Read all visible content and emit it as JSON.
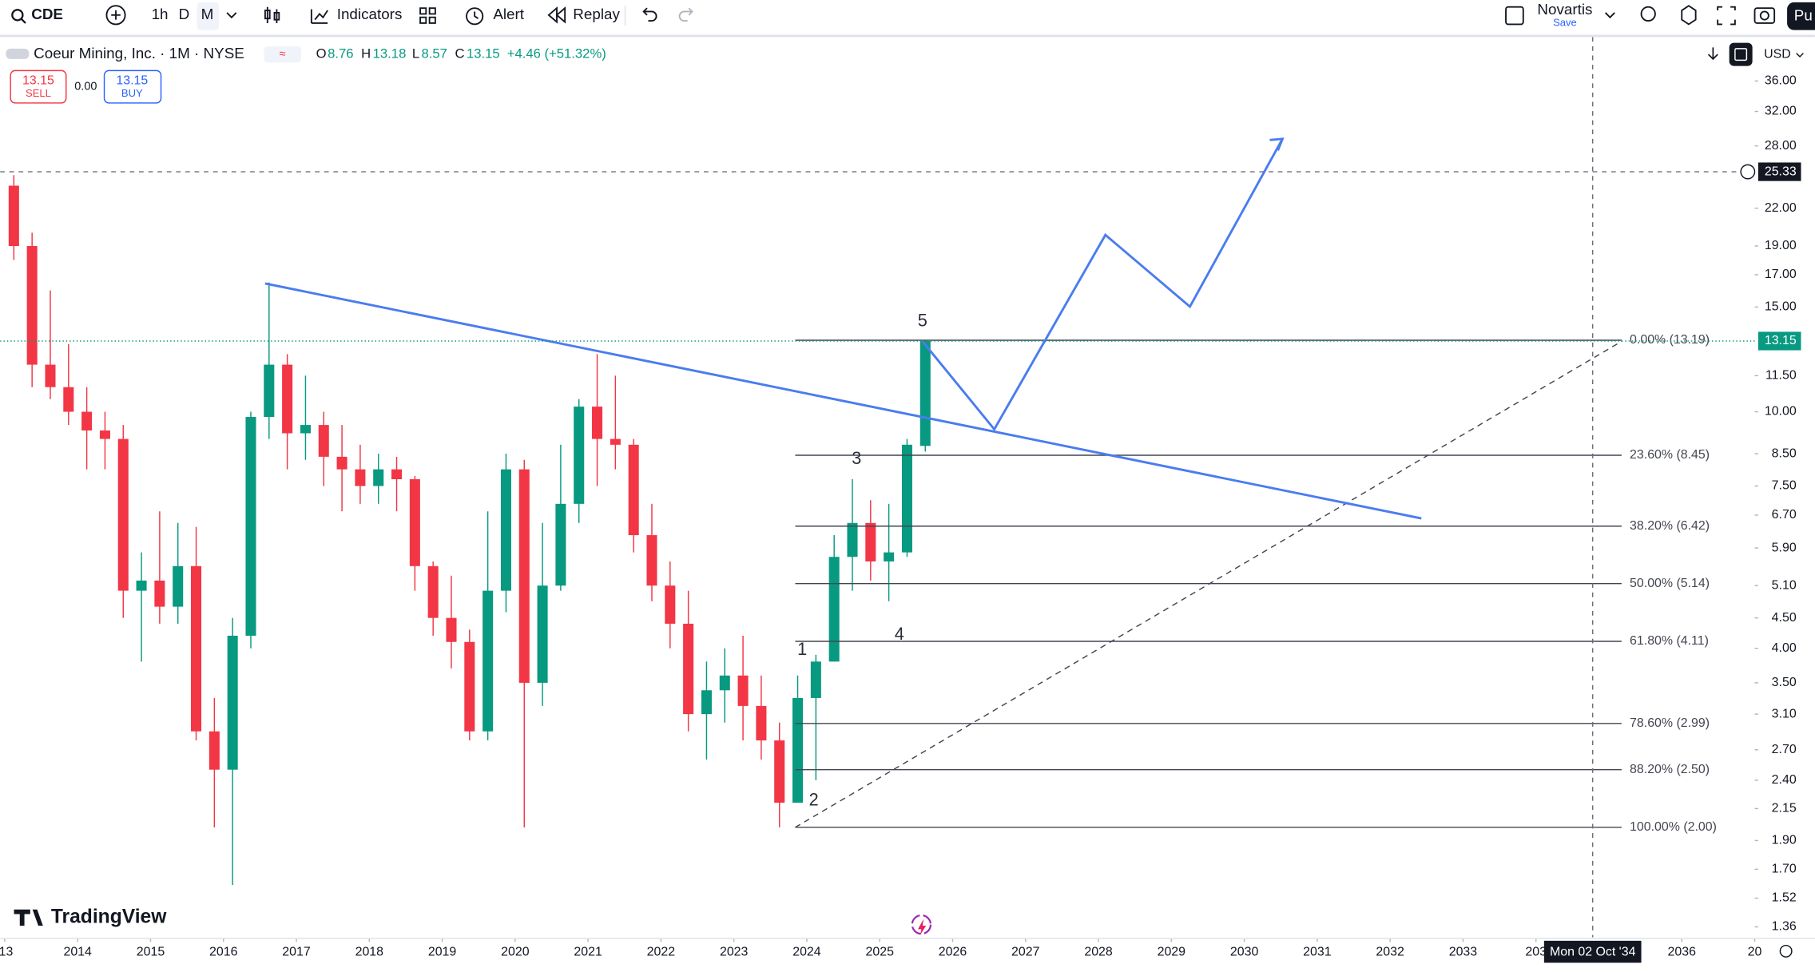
{
  "toolbar": {
    "symbol": "CDE",
    "intervals": [
      "1h",
      "D",
      "M"
    ],
    "indicators": "Indicators",
    "alert": "Alert",
    "replay": "Replay",
    "layout_name": "Novartis",
    "save": "Save",
    "publish": "Pu"
  },
  "legend": {
    "title": "Coeur Mining, Inc. · 1M · NYSE",
    "open_label": "O",
    "open": "8.76",
    "high_label": "H",
    "high": "13.18",
    "low_label": "L",
    "low": "8.57",
    "close_label": "C",
    "close": "13.15",
    "change": "+4.46 (+51.32%)"
  },
  "trade": {
    "sell_price": "13.15",
    "sell": "SELL",
    "spread": "0.00",
    "buy_price": "13.15",
    "buy": "BUY"
  },
  "currency": "USD",
  "price_axis": {
    "ticks": [
      {
        "value": 36,
        "label": "36.00"
      },
      {
        "value": 32,
        "label": "32.00"
      },
      {
        "value": 28,
        "label": "28.00"
      },
      {
        "value": 22,
        "label": "22.00"
      },
      {
        "value": 19,
        "label": "19.00"
      },
      {
        "value": 17,
        "label": "17.00"
      },
      {
        "value": 15,
        "label": "15.00"
      },
      {
        "value": 11.5,
        "label": "11.50"
      },
      {
        "value": 10,
        "label": "10.00"
      },
      {
        "value": 8.5,
        "label": "8.50"
      },
      {
        "value": 7.5,
        "label": "7.50"
      },
      {
        "value": 6.7,
        "label": "6.70"
      },
      {
        "value": 5.9,
        "label": "5.90"
      },
      {
        "value": 5.1,
        "label": "5.10"
      },
      {
        "value": 4.5,
        "label": "4.50"
      },
      {
        "value": 4,
        "label": "4.00"
      },
      {
        "value": 3.5,
        "label": "3.50"
      },
      {
        "value": 3.1,
        "label": "3.10"
      },
      {
        "value": 2.7,
        "label": "2.70"
      },
      {
        "value": 2.4,
        "label": "2.40"
      },
      {
        "value": 2.15,
        "label": "2.15"
      },
      {
        "value": 1.9,
        "label": "1.90"
      },
      {
        "value": 1.7,
        "label": "1.70"
      },
      {
        "value": 1.52,
        "label": "1.52"
      },
      {
        "value": 1.36,
        "label": "1.36"
      }
    ],
    "last_price": 13.15,
    "crosshair": 25.33
  },
  "time_axis": {
    "ticks": [
      {
        "value": 2013,
        "label": "'13"
      },
      2014,
      2015,
      2016,
      2017,
      2018,
      2019,
      2020,
      2021,
      2022,
      2023,
      2024,
      2025,
      2026,
      2027,
      2028,
      2029,
      2030,
      2031,
      2032,
      2033,
      {
        "value": 2034,
        "label": "203"
      },
      2036,
      {
        "value": 2037,
        "label": "20"
      }
    ],
    "crosshair": "Mon 02 Oct '34"
  },
  "fib_levels": [
    {
      "price": 13.19,
      "label": "0.00% (13.19)"
    },
    {
      "price": 8.45,
      "label": "23.60% (8.45)"
    },
    {
      "price": 6.42,
      "label": "38.20% (6.42)"
    },
    {
      "price": 5.14,
      "label": "50.00% (5.14)"
    },
    {
      "price": 4.11,
      "label": "61.80% (4.11)"
    },
    {
      "price": 2.99,
      "label": "78.60% (2.99)"
    },
    {
      "price": 2.5,
      "label": "88.20% (2.50)"
    },
    {
      "price": 2,
      "label": "100.00% (2.00)"
    }
  ],
  "waves": [
    "1",
    "2",
    "3",
    "4",
    "5"
  ],
  "candles": [
    [
      24,
      25,
      18,
      19
    ],
    [
      19,
      20,
      11,
      12
    ],
    [
      12,
      16,
      10.5,
      11
    ],
    [
      11,
      13,
      9.5,
      10
    ],
    [
      10,
      11,
      8,
      9.3
    ],
    [
      9.3,
      10,
      8,
      9
    ],
    [
      9,
      9.5,
      4.5,
      5
    ],
    [
      5,
      5.8,
      3.8,
      5.2
    ],
    [
      5.2,
      6.8,
      4.4,
      4.7
    ],
    [
      4.7,
      6.5,
      4.4,
      5.5
    ],
    [
      5.5,
      6.4,
      2.8,
      2.9
    ],
    [
      2.9,
      3.3,
      2,
      2.5
    ],
    [
      2.5,
      4.5,
      1.6,
      4.2
    ],
    [
      4.2,
      10,
      4,
      9.8
    ],
    [
      9.8,
      16.5,
      9,
      12
    ],
    [
      12,
      12.5,
      8,
      9.2
    ],
    [
      9.2,
      11.5,
      8.3,
      9.5
    ],
    [
      9.5,
      10,
      7.5,
      8.4
    ],
    [
      8.4,
      9.5,
      6.8,
      8
    ],
    [
      8,
      8.8,
      7,
      7.5
    ],
    [
      7.5,
      8.5,
      7,
      8
    ],
    [
      8,
      8.4,
      6.8,
      7.7
    ],
    [
      7.7,
      7.8,
      5,
      5.5
    ],
    [
      5.5,
      5.6,
      4.2,
      4.5
    ],
    [
      4.5,
      5.3,
      3.7,
      4.1
    ],
    [
      4.1,
      4.3,
      2.8,
      2.9
    ],
    [
      2.9,
      6.8,
      2.8,
      5
    ],
    [
      5,
      8.5,
      4.6,
      8
    ],
    [
      8,
      8.3,
      2,
      3.5
    ],
    [
      3.5,
      6.5,
      3.2,
      5.1
    ],
    [
      5.1,
      8.8,
      5,
      7
    ],
    [
      7,
      10.5,
      6.5,
      10.2
    ],
    [
      10.2,
      12.5,
      7.5,
      9
    ],
    [
      9,
      11.5,
      8,
      8.8
    ],
    [
      8.8,
      9,
      5.8,
      6.2
    ],
    [
      6.2,
      7,
      4.8,
      5.1
    ],
    [
      5.1,
      5.6,
      4,
      4.4
    ],
    [
      4.4,
      5,
      2.9,
      3.1
    ],
    [
      3.1,
      3.8,
      2.6,
      3.4
    ],
    [
      3.4,
      4,
      3,
      3.6
    ],
    [
      3.6,
      4.2,
      2.8,
      3.2
    ],
    [
      3.2,
      3.6,
      2.6,
      2.8
    ],
    [
      2.8,
      3,
      2,
      2.2
    ],
    [
      2.2,
      3.6,
      2.2,
      3.3
    ],
    [
      3.3,
      3.9,
      2.4,
      3.8
    ],
    [
      3.8,
      6.2,
      3.8,
      5.7
    ],
    [
      5.7,
      7.7,
      5,
      6.5
    ],
    [
      6.5,
      7.1,
      5.2,
      5.6
    ],
    [
      5.6,
      7,
      4.8,
      5.8
    ],
    [
      5.8,
      9,
      5.7,
      8.8
    ],
    [
      8.76,
      13.18,
      8.57,
      13.15
    ]
  ],
  "brand": "TradingView"
}
